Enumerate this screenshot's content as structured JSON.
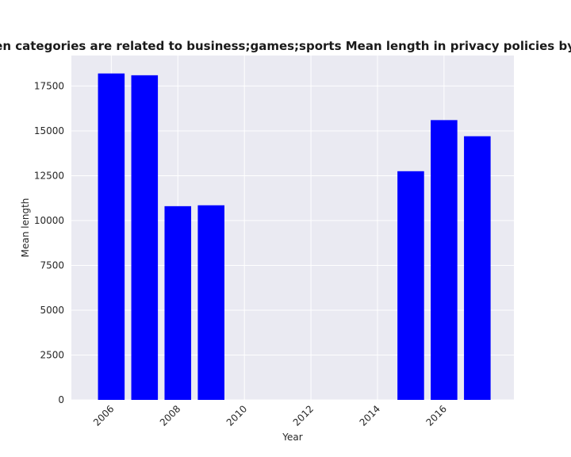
{
  "chart_data": {
    "type": "bar",
    "title": "when categories are related to business;games;sports Mean length in privacy policies by Year",
    "xlabel": "Year",
    "ylabel": "Mean length",
    "x": [
      2006,
      2007,
      2008,
      2009,
      2015,
      2016,
      2017
    ],
    "values": [
      18200,
      18100,
      10800,
      10850,
      12750,
      15600,
      14700
    ],
    "xlim": [
      2004.8,
      2018.1
    ],
    "ylim": [
      0,
      19200
    ],
    "xticks": [
      2006,
      2008,
      2010,
      2012,
      2014,
      2016
    ],
    "xtick_labels": [
      "2006",
      "2008",
      "2010",
      "2012",
      "2014",
      "2016"
    ],
    "yticks": [
      0,
      2500,
      5000,
      7500,
      10000,
      12500,
      15000,
      17500
    ],
    "ytick_labels": [
      "0",
      "2500",
      "5000",
      "7500",
      "10000",
      "12500",
      "15000",
      "17500"
    ],
    "bar_color": "#0000ff",
    "plot_background": "#eaeaf2",
    "grid": true,
    "grid_color": "#ffffff"
  }
}
